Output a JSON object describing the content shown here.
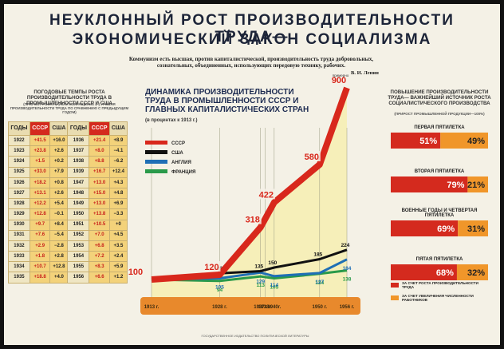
{
  "header": {
    "title_lines": [
      "НЕУКЛОННЫЙ РОСТ ПРОИЗВОДИТЕЛЬНОСТИ ТРУДА—",
      "ЭКОНОМИЧЕСКИЙ ЗАКОН СОЦИАЛИЗМА"
    ],
    "quote": "Коммунизм есть высшая, против капиталистической, производительность труда добровольных, сознательных, объединенных, использующих передовую технику, рабочих.",
    "quote_author": "В. И. Ленин",
    "publisher": "ГОСУДАРСТВЕННОЕ ИЗДАТЕЛЬСТВО ПОЛИТИЧЕСКОЙ ЛИТЕРАТУРЫ"
  },
  "table": {
    "title": "ПОГОДОВЫЕ ТЕМПЫ РОСТА ПРОИЗВОДИТЕЛЬНОСТИ ТРУДА В ПРОМЫШЛЕННОСТИ СССР И США",
    "subtitle": "(ПРИРОСТ РОСТА (+) ИЛИ СОКРАЩЕНИЕ (−) УРОВНЯ ПРОИЗВОДИТЕЛЬНОСТИ ТРУДА ПО СРАВНЕНИЮ С ПРЕДЫДУЩИМ ГОДОМ)",
    "columns": [
      "ГОДЫ",
      "СССР",
      "США",
      "ГОДЫ",
      "СССР",
      "США"
    ],
    "rows": [
      [
        "1922",
        "+41.5",
        "+16.0",
        "1936",
        "+21.4",
        "+8.9"
      ],
      [
        "1923",
        "+23.8",
        "+2.6",
        "1937",
        "+8.0",
        "−4.1"
      ],
      [
        "1924",
        "+1.5",
        "+0.2",
        "1938",
        "+8.8",
        "−6.2"
      ],
      [
        "1925",
        "+33.0",
        "+7.9",
        "1939",
        "+16.7",
        "+12.4"
      ],
      [
        "1926",
        "+18.2",
        "+0.8",
        "1947",
        "+13.0",
        "+4.3"
      ],
      [
        "1927",
        "+13.1",
        "+2.6",
        "1948",
        "+15.0",
        "+4.8"
      ],
      [
        "1928",
        "+12.2",
        "+5.4",
        "1949",
        "+13.0",
        "+6.9"
      ],
      [
        "1929",
        "+12.8",
        "−0.1",
        "1950",
        "+13.8",
        "−3.3"
      ],
      [
        "1930",
        "+9.7",
        "+8.4",
        "1951",
        "+10.5",
        "+0"
      ],
      [
        "1931",
        "+7.6",
        "−5.4",
        "1952",
        "+7.0",
        "+4.5"
      ],
      [
        "1932",
        "+2.9",
        "−2.8",
        "1953",
        "+6.8",
        "+3.5"
      ],
      [
        "1933",
        "+1.8",
        "+2.8",
        "1954",
        "+7.2",
        "+2.4"
      ],
      [
        "1934",
        "+10.7",
        "+12.8",
        "1955",
        "+8.3",
        "+5.9"
      ],
      [
        "1935",
        "+18.8",
        "+4.0",
        "1956",
        "+6.6",
        "+1.2"
      ]
    ]
  },
  "chart_data": [
    {
      "type": "line",
      "title": "ДИНАМИКА ПРОИЗВОДИТЕЛЬНОСТИ ТРУДА В ПРОМЫШЛЕННОСТИ СССР И ГЛАВНЫХ КАПИТАЛИСТИЧЕСКИХ СТРАН",
      "subtitle": "(в процентах к 1913 г.)",
      "annotation": "примерно",
      "x": [
        1913,
        1928,
        1937,
        1940,
        1950,
        1956
      ],
      "xlim": [
        1913,
        1956
      ],
      "xticks": [
        {
          "value": 1913,
          "label": "1913 г."
        },
        {
          "value": 1928,
          "label": "1928 г."
        },
        {
          "value": 1937,
          "label": "1937г."
        },
        {
          "value": 1938,
          "label": "1938г."
        },
        {
          "value": 1940,
          "label": "1940г."
        },
        {
          "value": 1950,
          "label": "1950 г."
        },
        {
          "value": 1956,
          "label": "1956 г."
        }
      ],
      "ylim": [
        0,
        1000
      ],
      "series": [
        {
          "name": "СССР",
          "color": "#d8281c",
          "values": [
            100,
            120,
            318,
            422,
            580,
            900
          ]
        },
        {
          "name": "США",
          "color": "#111111",
          "values": [
            100,
            126,
            135,
            150,
            185,
            224
          ]
        },
        {
          "name": "АНГЛИЯ",
          "color": "#1f6fb5",
          "values": [
            100,
            105,
            129,
            114,
            127,
            184
          ]
        },
        {
          "name": "ФРАНЦИЯ",
          "color": "#2a9a4a",
          "values": [
            100,
            94,
            113,
            105,
            124,
            138
          ]
        }
      ]
    },
    {
      "type": "bar",
      "orientation": "horizontal",
      "stacked": true,
      "title": "ПОВЫШЕНИЕ ПРОИЗВОДИТЕЛЬНОСТИ ТРУДА— ВАЖНЕЙШИЙ ИСТОЧНИК РОСТА СОЦИАЛИСТИЧЕСКОГО ПРОИЗВОДСТВА",
      "subtitle": "(ПРИРОСТ ПРОМЫШЛЕННОЙ ПРОДУКЦИИ—100%)",
      "categories": [
        "ПЕРВАЯ ПЯТИЛЕТКА",
        "ВТОРАЯ ПЯТИЛЕТКА",
        "ВОЕННЫЕ ГОДЫ И ЧЕТВЕРТАЯ ПЯТИЛЕТКА",
        "ПЯТАЯ ПЯТИЛЕТКА"
      ],
      "xlim": [
        0,
        100
      ],
      "series": [
        {
          "name": "ЗА СЧЕТ РОСТА ПРОИЗВОДИТЕЛЬНОСТИ ТРУДА",
          "color": "#d42a1e",
          "values": [
            51,
            79,
            69,
            68
          ],
          "value_labels": [
            "51%",
            "79%",
            "69%",
            "68%"
          ]
        },
        {
          "name": "ЗА СЧЕТ УВЕЛИЧЕНИЯ ЧИСЛЕННОСТИ РАБОТНИКОВ",
          "color": "#f0962a",
          "values": [
            49,
            21,
            31,
            32
          ],
          "value_labels": [
            "49%",
            "21%",
            "31%",
            "32%"
          ]
        }
      ]
    }
  ]
}
